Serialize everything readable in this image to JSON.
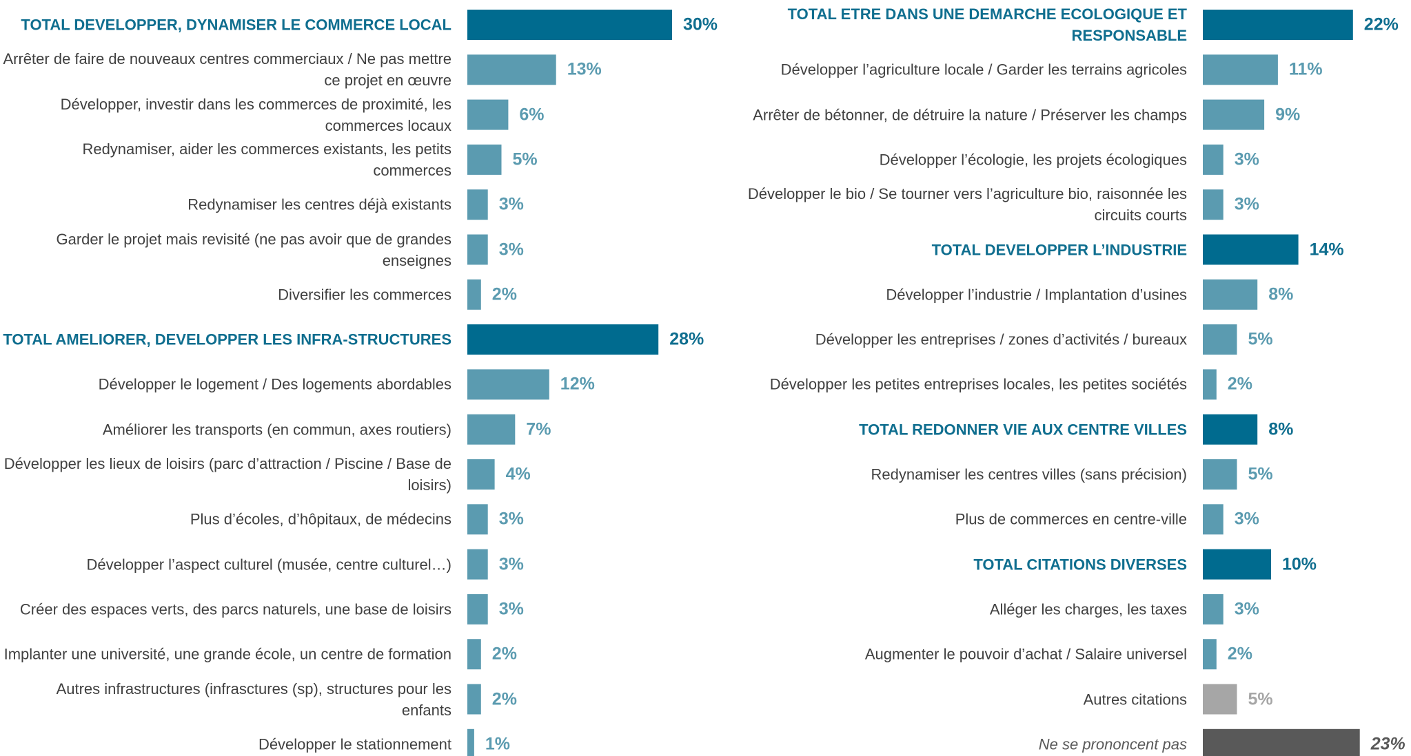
{
  "chart_data": [
    {
      "type": "hbar",
      "categories": [
        "TOTAL DEVELOPPER, DYNAMISER LE COMMERCE LOCAL",
        "Arrêter de faire de nouveaux centres commerciaux / Ne pas mettre ce projet en œuvre",
        "Développer, investir dans les commerces de proximité, les commerces locaux",
        "Redynamiser, aider les commerces existants, les petits commerces",
        "Redynamiser les centres déjà existants",
        "Garder le projet mais revisité (ne pas avoir que de grandes enseignes",
        "Diversifier les commerces",
        "TOTAL AMELIORER, DEVELOPPER LES INFRA-STRUCTURES",
        "Développer le logement / Des logements abordables",
        "Améliorer les transports (en commun, axes routiers)",
        "Développer les lieux de loisirs (parc d’attraction / Piscine / Base de loisirs)",
        "Plus d’écoles, d’hôpitaux, de médecins",
        "Développer l’aspect culturel (musée, centre culturel…)",
        "Créer des espaces verts, des parcs naturels, une base de loisirs",
        "Implanter une université, une grande école, un centre de formation",
        "Autres infrastructures (infrasctures (sp), structures pour les enfants",
        "Développer le stationnement"
      ],
      "values": [
        30,
        13,
        6,
        5,
        3,
        3,
        2,
        28,
        12,
        7,
        4,
        3,
        3,
        3,
        2,
        2,
        1
      ],
      "value_labels": [
        "30%",
        "13%",
        "6%",
        "5%",
        "3%",
        "3%",
        "2%",
        "28%",
        "12%",
        "7%",
        "4%",
        "3%",
        "3%",
        "3%",
        "2%",
        "2%",
        "1%"
      ],
      "colors": [
        "#006b8f",
        "#5b9bb0",
        "#5b9bb0",
        "#5b9bb0",
        "#5b9bb0",
        "#5b9bb0",
        "#5b9bb0",
        "#006b8f",
        "#5b9bb0",
        "#5b9bb0",
        "#5b9bb0",
        "#5b9bb0",
        "#5b9bb0",
        "#5b9bb0",
        "#5b9bb0",
        "#5b9bb0",
        "#5b9bb0"
      ]
    },
    {
      "type": "hbar",
      "categories": [
        "TOTAL ETRE DANS UNE DEMARCHE ECOLOGIQUE ET RESPONSABLE",
        "Développer l’agriculture locale / Garder les terrains agricoles",
        "Arrêter de bétonner, de détruire la nature / Préserver les champs",
        "Développer l’écologie, les projets écologiques",
        "Développer le bio / Se tourner vers l’agriculture bio, raisonnée les circuits courts",
        "TOTAL DEVELOPPER L’INDUSTRIE",
        "Développer l’industrie / Implantation d’usines",
        "Développer les entreprises / zones d’activités / bureaux",
        "Développer les petites entreprises locales, les petites sociétés",
        "TOTAL REDONNER VIE AUX CENTRE VILLES",
        "Redynamiser les centres villes (sans précision)",
        "Plus de commerces en centre-ville",
        "TOTAL CITATIONS DIVERSES",
        "Alléger les charges, les taxes",
        "Augmenter le pouvoir d’achat / Salaire universel",
        "Autres citations",
        "Ne se prononcent pas"
      ],
      "values": [
        22,
        11,
        9,
        3,
        3,
        14,
        8,
        5,
        2,
        8,
        5,
        3,
        10,
        3,
        2,
        5,
        23
      ],
      "value_labels": [
        "22%",
        "11%",
        "9%",
        "3%",
        "3%",
        "14%",
        "8%",
        "5%",
        "2%",
        "8%",
        "5%",
        "3%",
        "10%",
        "3%",
        "2%",
        "5%",
        "23%"
      ],
      "colors": [
        "#006b8f",
        "#5b9bb0",
        "#5b9bb0",
        "#5b9bb0",
        "#5b9bb0",
        "#006b8f",
        "#5b9bb0",
        "#5b9bb0",
        "#5b9bb0",
        "#006b8f",
        "#5b9bb0",
        "#5b9bb0",
        "#006b8f",
        "#5b9bb0",
        "#5b9bb0",
        "#a6a6a6",
        "#595959"
      ]
    }
  ]
}
